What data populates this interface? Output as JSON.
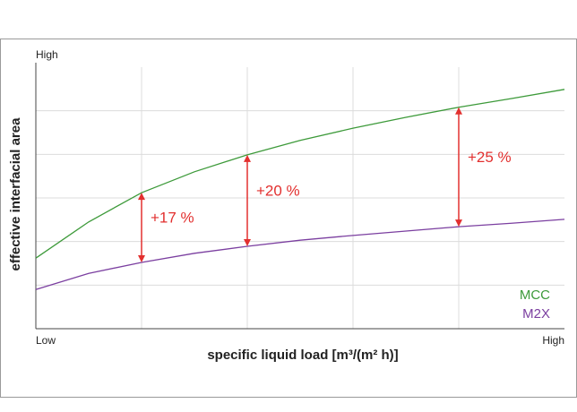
{
  "chart_data": {
    "type": "line",
    "xlabel": "specific liquid load [m³/(m² h)]",
    "ylabel": "effective interfacial area",
    "x": [
      0,
      0.5,
      1,
      1.5,
      2,
      2.5,
      3,
      3.5,
      4,
      4.5,
      5
    ],
    "series": [
      {
        "name": "MCC",
        "color": "#3d9a3a",
        "values": [
          1.62,
          2.45,
          3.12,
          3.6,
          3.99,
          4.32,
          4.6,
          4.85,
          5.08,
          5.28,
          5.49
        ]
      },
      {
        "name": "M2X",
        "color": "#7b3fa0",
        "values": [
          0.9,
          1.27,
          1.52,
          1.73,
          1.89,
          2.03,
          2.14,
          2.24,
          2.34,
          2.42,
          2.51
        ]
      }
    ],
    "xlim": [
      0,
      5
    ],
    "ylim": [
      0,
      6
    ],
    "xticks": [
      {
        "value": 0,
        "label": "Low"
      },
      {
        "value": 5,
        "label": "High"
      }
    ],
    "yticks": [
      {
        "value": 6,
        "label": "High"
      }
    ],
    "xgrid": [
      1,
      2,
      3,
      4
    ],
    "ygrid": [
      1,
      2,
      3,
      4,
      5
    ],
    "grid": true,
    "legend": "lower right",
    "annotations": [
      {
        "x": 1,
        "label": "+17 %"
      },
      {
        "x": 2,
        "label": "+20 %"
      },
      {
        "x": 4,
        "label": "+25 %"
      }
    ],
    "annotation_color": "#e2302f"
  }
}
